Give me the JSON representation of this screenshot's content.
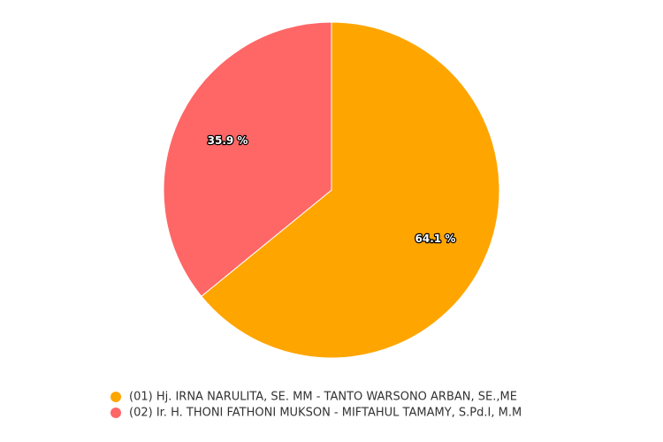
{
  "chart_data": {
    "type": "pie",
    "categories": [
      "(01) Hj. IRNA NARULITA, SE. MM - TANTO WARSONO ARBAN, SE.,ME",
      "(02) Ir. H. THONI FATHONI MUKSON - MIFTAHUL TAMAMY, S.Pd.I, M.M"
    ],
    "values": [
      64.1,
      35.9
    ],
    "value_labels": [
      "64.1 %",
      "35.9 %"
    ],
    "colors": [
      "#ffa500",
      "#ff6666"
    ]
  }
}
